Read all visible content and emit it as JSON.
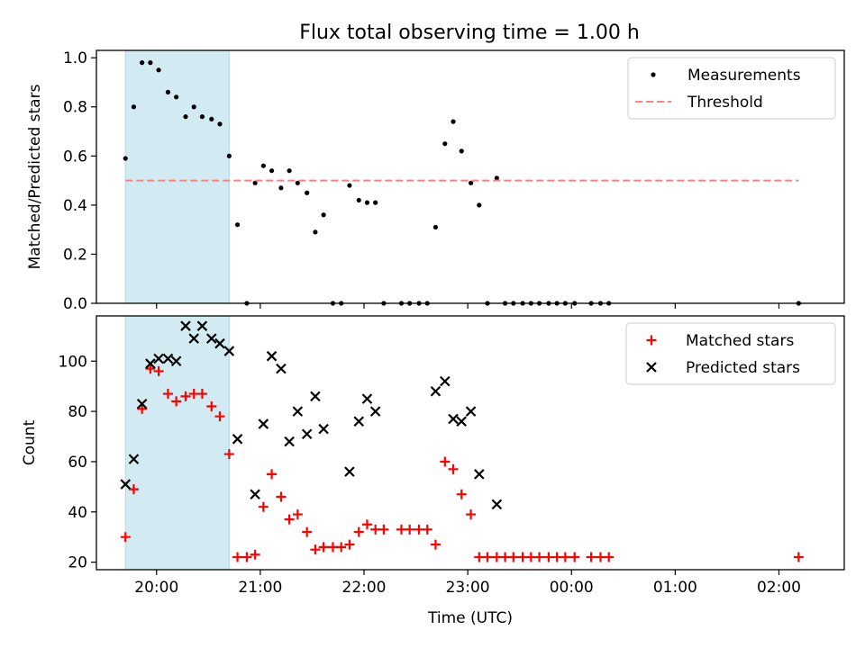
{
  "figure": {
    "title": "Flux total observing time = 1.00 h"
  },
  "chart_data": [
    {
      "type": "scatter",
      "title": "Flux total observing time = 1.00 h",
      "xlabel": "",
      "ylabel": "Matched/Predicted stars",
      "x_unit": "hours since 00:00 of first night (UTC)",
      "xlim": [
        19.42,
        26.63
      ],
      "ylim": [
        0.0,
        1.03
      ],
      "y_ticks": [
        0.0,
        0.2,
        0.4,
        0.6,
        0.8,
        1.0
      ],
      "y_tick_labels": [
        "0.0",
        "0.2",
        "0.4",
        "0.6",
        "0.8",
        "1.0"
      ],
      "highlight_span": [
        19.7,
        20.7
      ],
      "highlight_color": "#add8e6",
      "legend": {
        "position": "top-right"
      },
      "series": [
        {
          "name": "Measurements",
          "marker": "dot",
          "color": "#000000",
          "x": [
            19.7,
            19.78,
            19.86,
            19.94,
            20.02,
            20.11,
            20.19,
            20.28,
            20.36,
            20.44,
            20.53,
            20.61,
            20.7,
            20.78,
            20.87,
            20.95,
            21.03,
            21.11,
            21.2,
            21.28,
            21.36,
            21.45,
            21.53,
            21.61,
            21.7,
            21.78,
            21.86,
            21.95,
            22.03,
            22.11,
            22.19,
            22.36,
            22.44,
            22.53,
            22.61,
            22.69,
            22.78,
            22.86,
            22.94,
            23.03,
            23.11,
            23.19,
            23.28,
            23.36,
            23.44,
            23.53,
            23.61,
            23.69,
            23.78,
            23.86,
            23.94,
            24.03,
            24.19,
            24.28,
            24.36,
            26.19
          ],
          "y": [
            0.59,
            0.8,
            0.98,
            0.98,
            0.95,
            0.86,
            0.84,
            0.76,
            0.8,
            0.76,
            0.75,
            0.73,
            0.6,
            0.32,
            0.0,
            0.49,
            0.56,
            0.54,
            0.47,
            0.54,
            0.49,
            0.45,
            0.29,
            0.36,
            0.0,
            0.0,
            0.48,
            0.42,
            0.41,
            0.41,
            0.0,
            0.0,
            0.0,
            0.0,
            0.0,
            0.31,
            0.65,
            0.74,
            0.62,
            0.49,
            0.4,
            0.0,
            0.51,
            0.0,
            0.0,
            0.0,
            0.0,
            0.0,
            0.0,
            0.0,
            0.0,
            0.0,
            0.0,
            0.0,
            0.0,
            0.0
          ]
        },
        {
          "name": "Threshold",
          "marker": "dashed-line",
          "color": "#ff7f7f",
          "x": [
            19.7,
            26.19
          ],
          "y": [
            0.5,
            0.5
          ]
        }
      ]
    },
    {
      "type": "scatter",
      "title": "",
      "xlabel": "Time (UTC)",
      "ylabel": "Count",
      "x_unit": "hours since 00:00 of first night (UTC)",
      "xlim": [
        19.42,
        26.63
      ],
      "ylim": [
        17,
        118
      ],
      "x_ticks": [
        20,
        21,
        22,
        23,
        24,
        25,
        26
      ],
      "x_tick_labels": [
        "20:00",
        "21:00",
        "22:00",
        "23:00",
        "00:00",
        "01:00",
        "02:00"
      ],
      "y_ticks": [
        20,
        40,
        60,
        80,
        100
      ],
      "y_tick_labels": [
        "20",
        "40",
        "60",
        "80",
        "100"
      ],
      "highlight_span": [
        19.7,
        20.7
      ],
      "highlight_color": "#add8e6",
      "legend": {
        "position": "top-right"
      },
      "series": [
        {
          "name": "Matched stars",
          "marker": "plus",
          "color": "#ff0000",
          "x": [
            19.7,
            19.78,
            19.86,
            19.94,
            20.02,
            20.11,
            20.19,
            20.28,
            20.36,
            20.44,
            20.53,
            20.61,
            20.7,
            20.78,
            20.87,
            20.95,
            21.03,
            21.11,
            21.2,
            21.28,
            21.36,
            21.45,
            21.53,
            21.61,
            21.7,
            21.78,
            21.86,
            21.95,
            22.03,
            22.11,
            22.19,
            22.36,
            22.44,
            22.53,
            22.61,
            22.69,
            22.78,
            22.86,
            22.94,
            23.03,
            23.11,
            23.19,
            23.28,
            23.36,
            23.44,
            23.53,
            23.61,
            23.69,
            23.78,
            23.86,
            23.94,
            24.03,
            24.19,
            24.28,
            24.36,
            26.19
          ],
          "y": [
            30,
            49,
            81,
            97,
            96,
            87,
            84,
            86,
            87,
            87,
            82,
            78,
            63,
            22,
            22,
            23,
            42,
            55,
            46,
            37,
            39,
            32,
            25,
            26,
            26,
            26,
            27,
            32,
            35,
            33,
            33,
            33,
            33,
            33,
            33,
            27,
            60,
            57,
            47,
            39,
            22,
            22,
            22,
            22,
            22,
            22,
            22,
            22,
            22,
            22,
            22,
            22,
            22,
            22,
            22,
            22
          ]
        },
        {
          "name": "Predicted stars",
          "marker": "x",
          "color": "#000000",
          "x": [
            19.7,
            19.78,
            19.86,
            19.94,
            20.02,
            20.11,
            20.19,
            20.28,
            20.36,
            20.44,
            20.53,
            20.61,
            20.7,
            20.78,
            20.95,
            21.03,
            21.11,
            21.2,
            21.28,
            21.36,
            21.45,
            21.53,
            21.61,
            21.86,
            21.95,
            22.03,
            22.11,
            22.69,
            22.78,
            22.86,
            22.94,
            23.03,
            23.11,
            23.28
          ],
          "y": [
            51,
            61,
            83,
            99,
            101,
            101,
            100,
            114,
            109,
            114,
            109,
            107,
            104,
            69,
            47,
            75,
            102,
            97,
            68,
            80,
            71,
            86,
            73,
            56,
            76,
            85,
            80,
            88,
            92,
            77,
            76,
            80,
            55,
            43
          ]
        }
      ]
    }
  ]
}
